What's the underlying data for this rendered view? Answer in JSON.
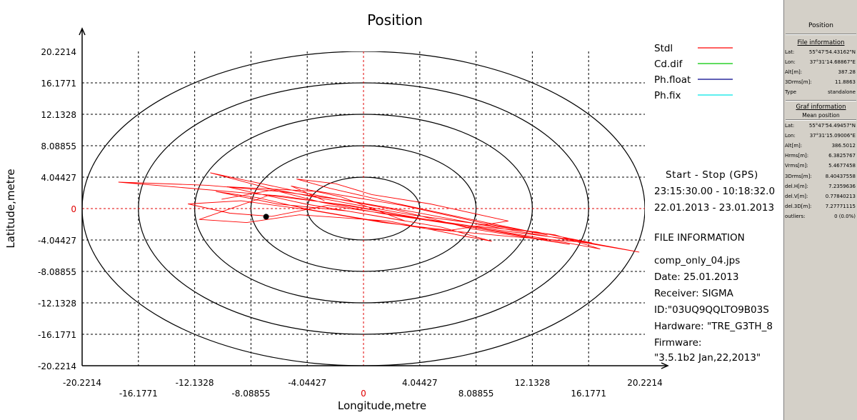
{
  "chart_data": {
    "type": "scatter",
    "title": "Position",
    "xlabel": "Longitude,metre",
    "ylabel": "Latitude,metre",
    "xlim": [
      -20.2214,
      20.2214
    ],
    "ylim": [
      -20.2214,
      20.2214
    ],
    "x_ticks_upper": [
      "-20.2214",
      "-12.1328",
      "-4.04427",
      "4.04427",
      "12.1328",
      "20.2214"
    ],
    "x_ticks_lower": [
      "-16.1771",
      "-8.08855",
      "0",
      "8.08855",
      "16.1771"
    ],
    "y_ticks": [
      "20.2214",
      "16.1771",
      "12.1328",
      "8.08855",
      "4.04427",
      "0",
      "-4.04427",
      "-8.08855",
      "-12.1328",
      "-16.1771",
      "-20.2214"
    ],
    "circle_radii": [
      4.04427,
      8.08855,
      12.1328,
      16.1771,
      20.2214
    ],
    "grid": true,
    "legend_position": "top-right",
    "legend": [
      {
        "name": "Stdl",
        "color": "#ff0000"
      },
      {
        "name": "Cd.dif",
        "color": "#00c800"
      },
      {
        "name": "Ph.float",
        "color": "#00008b"
      },
      {
        "name": "Ph.fix",
        "color": "#00e5e5"
      }
    ],
    "series": [
      {
        "name": "Stdl",
        "color": "#ff0000",
        "points": [
          [
            -10.2,
            1.2
          ],
          [
            -6.5,
            2.4
          ],
          [
            -3.0,
            0.8
          ],
          [
            1.2,
            -0.6
          ],
          [
            6.4,
            -2.0
          ],
          [
            12.8,
            -3.8
          ],
          [
            17.0,
            -5.2
          ],
          [
            13.8,
            -3.4
          ],
          [
            9.2,
            -2.2
          ],
          [
            3.4,
            -0.8
          ],
          [
            -1.8,
            0.9
          ],
          [
            -6.8,
            2.6
          ],
          [
            -11.0,
            4.6
          ],
          [
            -8.4,
            3.6
          ],
          [
            -3.6,
            1.8
          ],
          [
            2.4,
            -0.2
          ],
          [
            7.8,
            -2.6
          ],
          [
            14.8,
            -4.6
          ],
          [
            11.0,
            -3.4
          ],
          [
            5.2,
            -1.6
          ],
          [
            -0.6,
            0.2
          ],
          [
            -5.8,
            1.6
          ],
          [
            -17.6,
            3.4
          ],
          [
            -11.2,
            3.0
          ],
          [
            -6.0,
            2.2
          ],
          [
            -1.4,
            1.1
          ],
          [
            3.8,
            -0.5
          ],
          [
            9.4,
            -2.4
          ],
          [
            15.6,
            -4.3
          ],
          [
            19.8,
            -5.6
          ],
          [
            15.0,
            -4.0
          ],
          [
            9.8,
            -2.8
          ],
          [
            4.2,
            -1.3
          ],
          [
            -1.0,
            0.4
          ],
          [
            -6.8,
            1.7
          ],
          [
            -11.8,
            -1.4
          ],
          [
            -8.4,
            -1.8
          ],
          [
            -4.6,
            -0.8
          ],
          [
            1.8,
            -1.6
          ],
          [
            6.8,
            -3.4
          ],
          [
            9.2,
            -4.2
          ],
          [
            5.6,
            -2.4
          ],
          [
            0.8,
            -0.9
          ],
          [
            -4.2,
            0.6
          ],
          [
            -9.8,
            2.8
          ],
          [
            -3.2,
            2.2
          ],
          [
            2.8,
            0.4
          ],
          [
            8.4,
            -1.8
          ],
          [
            13.2,
            -3.4
          ],
          [
            7.2,
            -1.2
          ],
          [
            2.0,
            0.8
          ],
          [
            -2.4,
            2.6
          ],
          [
            -4.8,
            3.8
          ],
          [
            -2.0,
            3.2
          ],
          [
            0.6,
            1.8
          ],
          [
            4.8,
            0.6
          ],
          [
            10.4,
            -1.6
          ],
          [
            6.2,
            -2.8
          ],
          [
            1.4,
            -1.8
          ],
          [
            -3.8,
            -0.2
          ],
          [
            -8.8,
            1.0
          ],
          [
            -12.6,
            0.6
          ],
          [
            -9.6,
            -0.6
          ],
          [
            -6.6,
            -1.0
          ],
          [
            -2.6,
            0.4
          ],
          [
            2.2,
            -0.8
          ],
          [
            7.6,
            -2.2
          ],
          [
            12.4,
            -3.0
          ],
          [
            16.4,
            -4.4
          ],
          [
            10.6,
            -3.6
          ],
          [
            4.6,
            -2.6
          ],
          [
            -0.4,
            -1.2
          ],
          [
            -4.0,
            -0.1
          ],
          [
            -7.6,
            1.4
          ],
          [
            -10.6,
            2.2
          ],
          [
            -6.2,
            0.6
          ],
          [
            -1.2,
            -0.3
          ],
          [
            3.0,
            -1.6
          ],
          [
            -1.6,
            1.5
          ],
          [
            -5.2,
            2.9
          ],
          [
            -2.8,
            1.0
          ]
        ]
      },
      {
        "name": "Cd.dif",
        "color": "#00c800",
        "points": []
      },
      {
        "name": "Ph.float",
        "color": "#00008b",
        "points": []
      },
      {
        "name": "Ph.fix",
        "color": "#00e5e5",
        "points": []
      }
    ],
    "mean_marker": [
      -7.0,
      -1.05
    ]
  },
  "info": {
    "header": "Start - Stop (GPS)",
    "time_range": "23:15:30.00 - 10:18:32.0",
    "date_range": "22.01.2013 - 23.01.2013",
    "file_info_title": "FILE INFORMATION",
    "file_name": "comp_only_04.jps",
    "date": "Date: 25.01.2013",
    "receiver": "Receiver: SIGMA",
    "id": "ID:\"03UQ9QQLTO9B03S",
    "hardware": "Hardware: \"TRE_G3TH_8",
    "firmware_label": "Firmware:",
    "firmware_value": "\"3.5.1b2 Jan,22,2013\""
  },
  "side_panel": {
    "title": "Position",
    "file_info": {
      "heading": "File information",
      "rows": [
        {
          "k": "Lat:",
          "v": "55°47'54.43162\"N"
        },
        {
          "k": "Lon:",
          "v": "37°31'14.68867\"E"
        },
        {
          "k": "Alt[m]:",
          "v": "387.28"
        },
        {
          "k": "3Drms[m]:",
          "v": "11.8863"
        },
        {
          "k": "Type",
          "v": "standalone"
        }
      ]
    },
    "graf_info": {
      "heading": "Graf information",
      "subheading": "Mean position",
      "rows": [
        {
          "k": "Lat:",
          "v": "55°47'54.49457\"N"
        },
        {
          "k": "Lon:",
          "v": "37°31'15.09006\"E"
        },
        {
          "k": "Alt[m]:",
          "v": "386.5012"
        },
        {
          "k": "Hrms[m]:",
          "v": "6.3825767"
        },
        {
          "k": "Vrms[m]:",
          "v": "5.4677458"
        },
        {
          "k": "3Drms[m]:",
          "v": "8.40437558"
        },
        {
          "k": "del.H[m]:",
          "v": "7.2359636"
        },
        {
          "k": "del.V[m]:",
          "v": "0.77840213"
        },
        {
          "k": "del.3D[m]:",
          "v": "7.27771115"
        },
        {
          "k": "outliers:",
          "v": "0 (0.0%)"
        }
      ]
    }
  }
}
